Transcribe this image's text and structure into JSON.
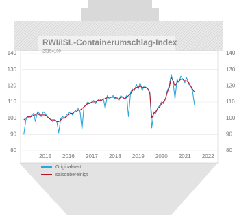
{
  "chart_data": {
    "type": "line",
    "title": "RWI/ISL-Containerumschlag-Index",
    "subtitle": "2015=100",
    "x": [
      2014.58,
      2014.67,
      2014.75,
      2014.83,
      2014.92,
      2015.0,
      2015.08,
      2015.17,
      2015.25,
      2015.33,
      2015.42,
      2015.5,
      2015.58,
      2015.67,
      2015.75,
      2015.83,
      2015.92,
      2016.0,
      2016.08,
      2016.17,
      2016.25,
      2016.33,
      2016.42,
      2016.5,
      2016.58,
      2016.67,
      2016.75,
      2016.83,
      2016.92,
      2017.0,
      2017.08,
      2017.17,
      2017.25,
      2017.33,
      2017.42,
      2017.5,
      2017.58,
      2017.67,
      2017.75,
      2017.83,
      2017.92,
      2018.0,
      2018.08,
      2018.17,
      2018.25,
      2018.33,
      2018.42,
      2018.5,
      2018.58,
      2018.67,
      2018.75,
      2018.83,
      2018.92,
      2019.0,
      2019.08,
      2019.17,
      2019.25,
      2019.33,
      2019.42,
      2019.5,
      2019.58,
      2019.67,
      2019.75,
      2019.83,
      2019.92,
      2020.0,
      2020.08,
      2020.17,
      2020.25,
      2020.33,
      2020.42,
      2020.5,
      2020.58,
      2020.67,
      2020.75,
      2020.83,
      2020.92,
      2021.0,
      2021.08,
      2021.17,
      2021.25,
      2021.33,
      2021.42,
      2021.5,
      2021.58,
      2021.67,
      2021.75,
      2021.83,
      2021.92
    ],
    "series": [
      {
        "name": "Originalwert",
        "color": "#2aa7df",
        "values": [
          90,
          99,
          101,
          100,
          102,
          103,
          98,
          104,
          103,
          101,
          104,
          103,
          101,
          100,
          99,
          98,
          99,
          98,
          91,
          100,
          101,
          100,
          102,
          103,
          104,
          102,
          104,
          105,
          106,
          104,
          93,
          108,
          108,
          110,
          109,
          110,
          111,
          109,
          111,
          112,
          111,
          112,
          106,
          114,
          112,
          113,
          114,
          112,
          113,
          111,
          114,
          113,
          112,
          114,
          101,
          116,
          118,
          117,
          121,
          118,
          122,
          117,
          120,
          119,
          118,
          116,
          94,
          104,
          103,
          106,
          108,
          110,
          109,
          112,
          117,
          120,
          127,
          122,
          112,
          124,
          122,
          126,
          124,
          122,
          125,
          121,
          120,
          117,
          108
        ]
      },
      {
        "name": "saisonbereinigt",
        "color": "#b3172f",
        "values": [
          99,
          100,
          101,
          101,
          101,
          102,
          102,
          103,
          102,
          102,
          102,
          102,
          101,
          100,
          99,
          99,
          99,
          98,
          98,
          99,
          100,
          100,
          101,
          102,
          103,
          103,
          104,
          104,
          105,
          105,
          106,
          107,
          108,
          109,
          109,
          110,
          110,
          110,
          111,
          111,
          111,
          112,
          112,
          113,
          113,
          113,
          113,
          113,
          112,
          112,
          113,
          113,
          112,
          113,
          114,
          115,
          117,
          118,
          119,
          119,
          120,
          119,
          119,
          119,
          118,
          115,
          100,
          103,
          104,
          106,
          107,
          109,
          110,
          112,
          116,
          119,
          125,
          123,
          120,
          122,
          123,
          124,
          124,
          123,
          123,
          122,
          120,
          118,
          116
        ]
      }
    ],
    "xlim": [
      2014.5,
      2022.92
    ],
    "xticks": [
      {
        "value": 2015.5,
        "label": "2015"
      },
      {
        "value": 2016.5,
        "label": "2016"
      },
      {
        "value": 2017.5,
        "label": "2017"
      },
      {
        "value": 2018.5,
        "label": "2018"
      },
      {
        "value": 2019.5,
        "label": "2019"
      },
      {
        "value": 2020.5,
        "label": "2020"
      },
      {
        "value": 2021.5,
        "label": "2021"
      },
      {
        "value": 2022.5,
        "label": "2022"
      }
    ],
    "ylim": [
      80,
      140
    ],
    "yticks": [
      80,
      90,
      100,
      110,
      120,
      130,
      140
    ],
    "grid": true
  }
}
